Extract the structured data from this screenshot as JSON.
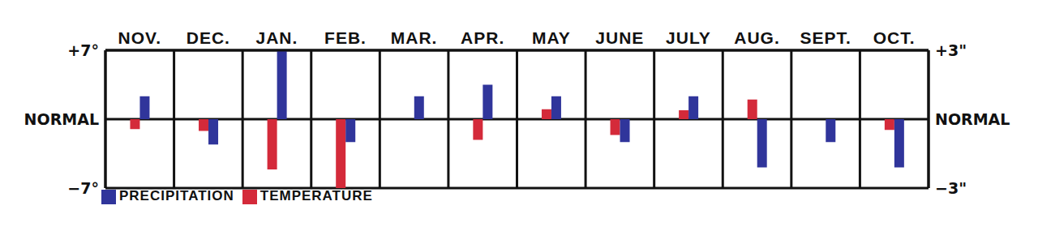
{
  "chart_data": {
    "type": "bar",
    "categories": [
      "NOV.",
      "DEC.",
      "JAN.",
      "FEB.",
      "MAR.",
      "APR.",
      "MAY",
      "JUNE",
      "JULY",
      "AUG.",
      "SEPT.",
      "OCT."
    ],
    "series": [
      {
        "name": "TEMPERATURE",
        "color": "#d42a3a",
        "values": [
          -1.0,
          -1.2,
          -5.1,
          -7.0,
          0,
          -2.1,
          1.0,
          -1.6,
          0.9,
          2.0,
          0,
          -1.1
        ]
      },
      {
        "name": "PRECIPITATION",
        "color": "#30359b",
        "axis": "y2",
        "values": [
          1.0,
          -1.1,
          3.0,
          -1.0,
          1.0,
          1.5,
          1.0,
          -1.0,
          1.0,
          -2.1,
          -1.0,
          -2.1
        ]
      }
    ],
    "ylim": [
      -7,
      7
    ],
    "yticks": [
      {
        "value": -7,
        "label": "−7°"
      },
      {
        "value": 0,
        "label": "NORMAL"
      },
      {
        "value": 7,
        "label": "+7°"
      }
    ],
    "y2lim": [
      -3,
      3
    ],
    "y2ticks": [
      {
        "value": -3,
        "label": "−3\""
      },
      {
        "value": 0,
        "label": "NORMAL"
      },
      {
        "value": 3,
        "label": "+3\""
      }
    ],
    "grid": true,
    "legend": "bottom-left"
  }
}
